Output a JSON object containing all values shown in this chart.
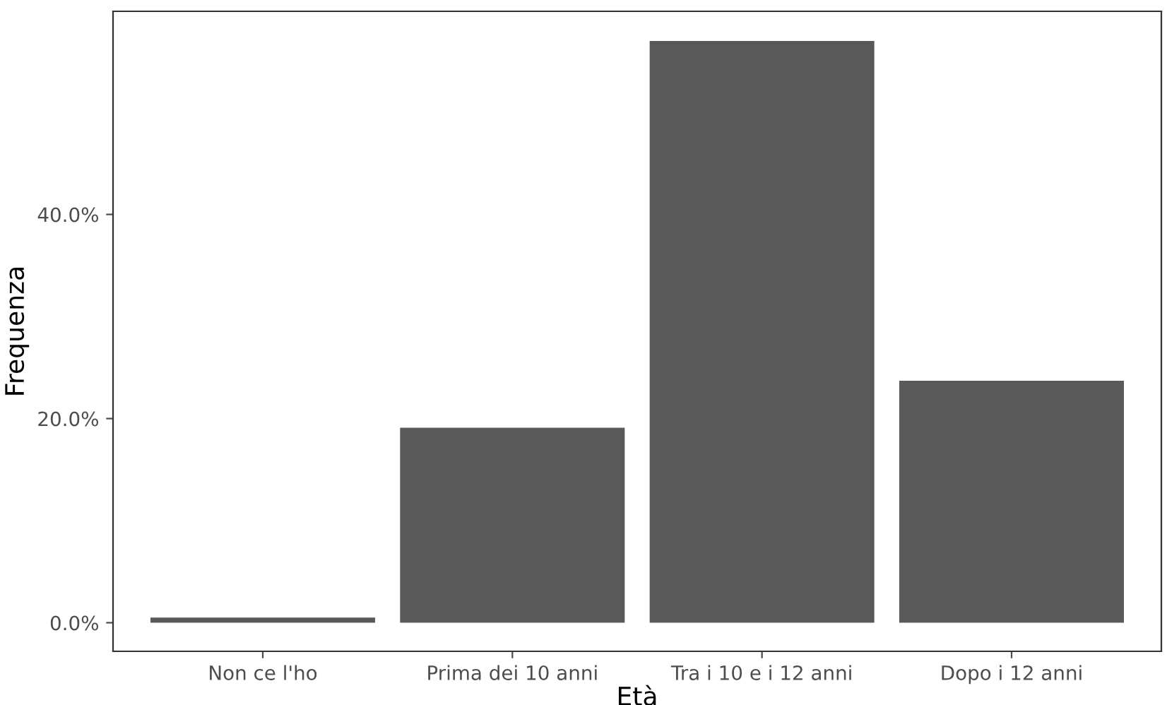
{
  "chart_data": {
    "type": "bar",
    "xlabel": "Età",
    "ylabel": "Frequenza",
    "categories": [
      "Non ce l'ho",
      "Prima dei 10 anni",
      "Tra i 10 e i 12 anni",
      "Dopo i 12 anni"
    ],
    "values": [
      0.5,
      19.1,
      57.0,
      23.7
    ],
    "color": "#595959",
    "ylim": [
      -2.8,
      59.9
    ],
    "yticks": [
      {
        "value": 0,
        "label": "0.0%"
      },
      {
        "value": 20,
        "label": "20.0%"
      },
      {
        "value": 40,
        "label": "40.0%"
      }
    ],
    "grid": false,
    "legend": false
  }
}
